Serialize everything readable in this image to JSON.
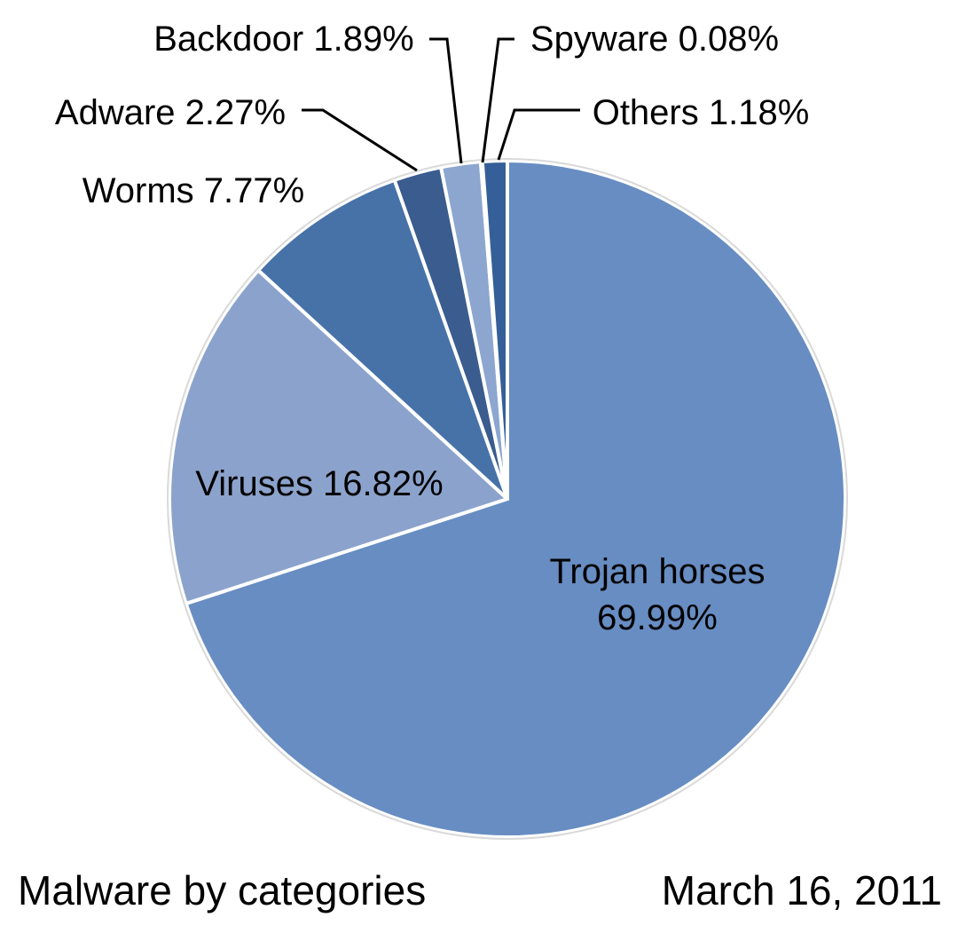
{
  "chart_data": {
    "type": "pie",
    "title": "Malware by categories",
    "date": "March 16, 2011",
    "start_angle_deg": 0,
    "direction": "clockwise",
    "slices": [
      {
        "name": "Trojan horses",
        "value": 69.99,
        "display": "69.99%",
        "color": "#678dc2"
      },
      {
        "name": "Viruses",
        "value": 16.82,
        "display": "16.82%",
        "color": "#8ba3cc"
      },
      {
        "name": "Worms",
        "value": 7.77,
        "display": "7.77%",
        "color": "#4672a8"
      },
      {
        "name": "Adware",
        "value": 2.27,
        "display": "2.27%",
        "color": "#3a5c8e"
      },
      {
        "name": "Backdoor",
        "value": 1.89,
        "display": "1.89%",
        "color": "#8ca6d0"
      },
      {
        "name": "Spyware",
        "value": 0.08,
        "display": "0.08%",
        "color": "#a9bde0"
      },
      {
        "name": "Others",
        "value": 1.18,
        "display": "1.18%",
        "color": "#355f98"
      }
    ]
  }
}
